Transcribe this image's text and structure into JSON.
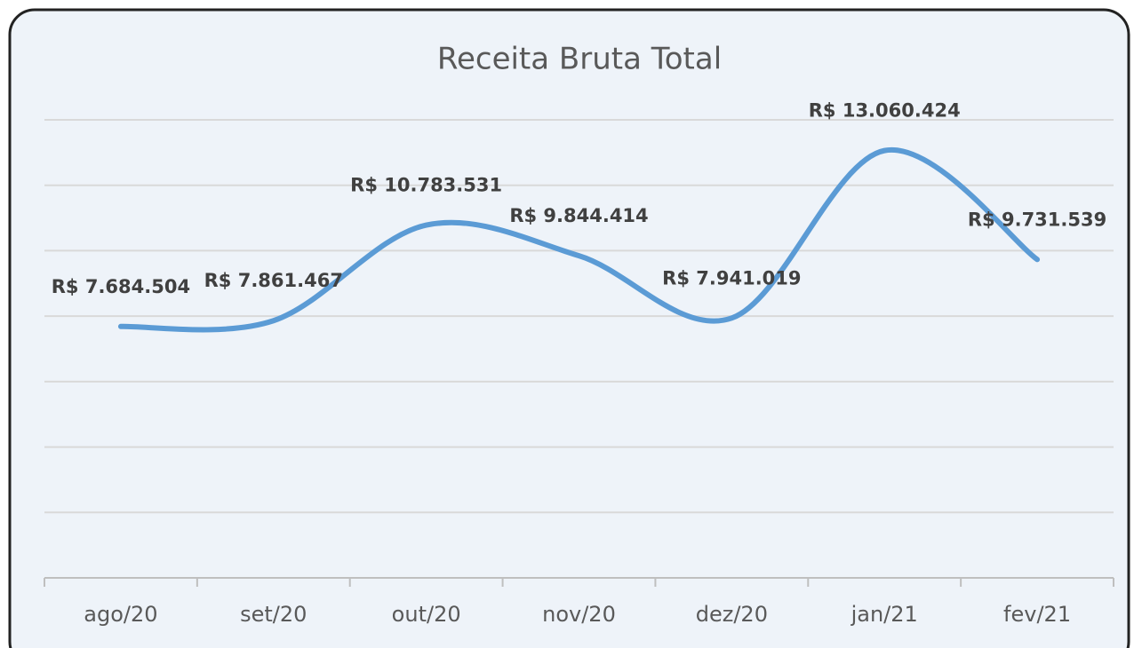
{
  "chart_data": {
    "type": "line",
    "title": "Receita Bruta Total",
    "categories": [
      "ago/20",
      "set/20",
      "out/20",
      "nov/20",
      "dez/20",
      "jan/21",
      "fev/21"
    ],
    "series": [
      {
        "name": "Receita Bruta Total",
        "color": "#5b9bd5",
        "values": [
          7684504,
          7861467,
          10783531,
          9844414,
          7941019,
          13060424,
          9731539
        ],
        "value_labels": [
          "R$ 7.684.504",
          "R$ 7.861.467",
          "R$ 10.783.531",
          "R$ 9.844.414",
          "R$ 7.941.019",
          "R$ 13.060.424",
          "R$ 9.731.539"
        ]
      }
    ],
    "ylim": [
      0,
      14000000
    ],
    "yticks": [
      0,
      2000000,
      4000000,
      6000000,
      8000000,
      10000000,
      12000000,
      14000000
    ],
    "grid": true,
    "smooth": true
  }
}
